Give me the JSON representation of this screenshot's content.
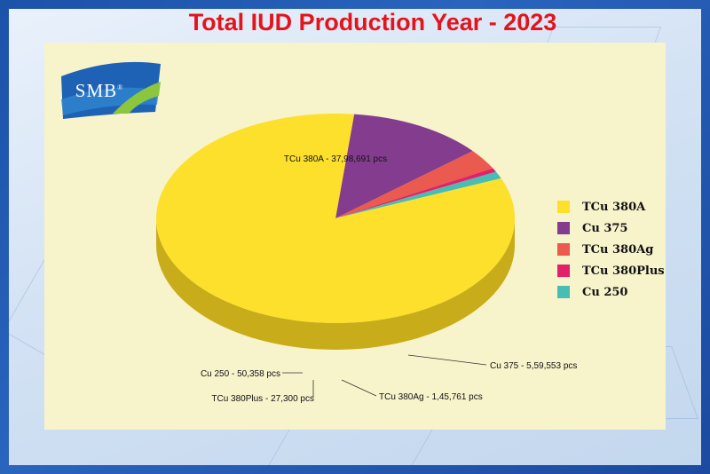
{
  "logo": {
    "text": "SMB",
    "reg": "®"
  },
  "chart_data": {
    "type": "pie",
    "title": "Total IUD Production Year - 2023",
    "legend_position": "right",
    "slices": [
      {
        "name": "TCu 380A",
        "value": 3798691,
        "label": "TCu 380A - 37,98,691 pcs",
        "color": "#fde02b",
        "side": "#c9ac1a"
      },
      {
        "name": "Cu 375",
        "value": 559553,
        "label": "Cu 375 - 5,59,553 pcs",
        "color": "#843c8f",
        "side": "#3c1744"
      },
      {
        "name": "TCu 380Ag",
        "value": 145761,
        "label": "TCu 380Ag - 1,45,761 pcs",
        "color": "#ea5a4e",
        "side": "#8a241e"
      },
      {
        "name": "TCu 380Plus",
        "value": 27300,
        "label": "TCu 380Plus - 27,300 pcs",
        "color": "#e3216a",
        "side": "#7e0f38"
      },
      {
        "name": "Cu 250",
        "value": 50358,
        "label": "Cu 250 - 50,358 pcs",
        "color": "#47bdb4",
        "side": "#1f6f6a"
      }
    ]
  }
}
